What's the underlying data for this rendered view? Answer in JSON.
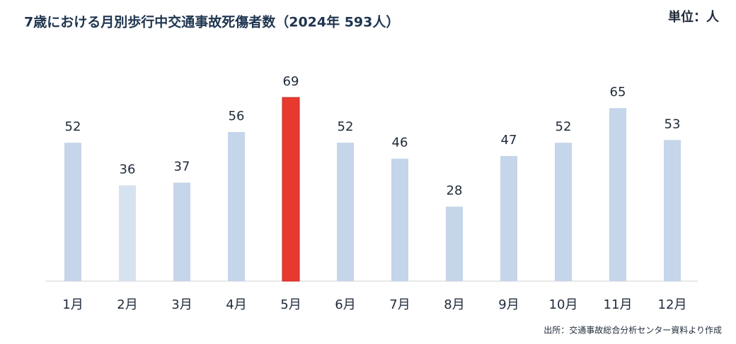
{
  "chart_data": {
    "type": "bar",
    "title": "7歳における月別歩行中交通事故死傷者数（2024年 593人）",
    "unit": "単位：人",
    "source": "出所：交通事故総合分析センター資料より作成",
    "categories": [
      "1月",
      "2月",
      "3月",
      "4月",
      "5月",
      "6月",
      "7月",
      "8月",
      "9月",
      "10月",
      "11月",
      "12月"
    ],
    "values": [
      52,
      36,
      37,
      56,
      69,
      52,
      46,
      28,
      47,
      52,
      65,
      53
    ],
    "colors": [
      "#c5d5ea",
      "#d7e2f0",
      "#c5d5ea",
      "#c5d5ea",
      "#e8392f",
      "#c5d5ea",
      "#c5d5ea",
      "#c5d5ea",
      "#c5d5ea",
      "#c5d5ea",
      "#c5d5ea",
      "#c5d5ea"
    ]
  }
}
